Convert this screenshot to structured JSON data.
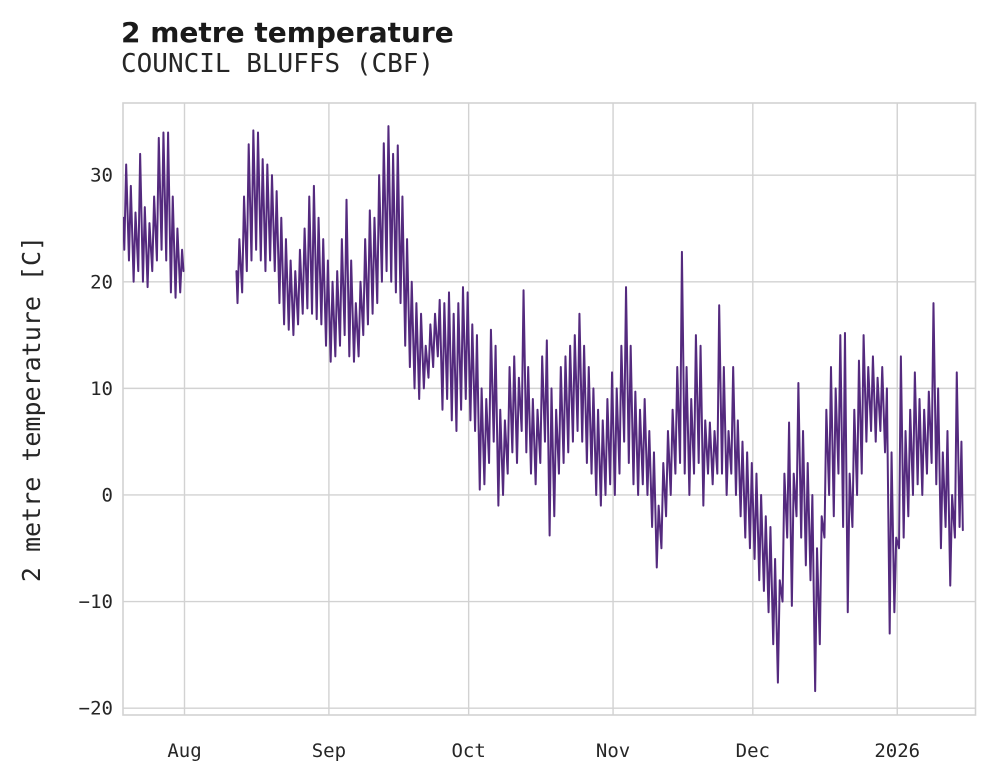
{
  "header": {
    "title": "2 metre temperature",
    "subtitle": "COUNCIL BLUFFS (CBF)"
  },
  "chart_data": {
    "type": "line",
    "title": "2 metre temperature",
    "subtitle": "COUNCIL BLUFFS (CBF)",
    "xlabel": "",
    "ylabel": "2 metre temperature [C]",
    "y_ticks": [
      30,
      20,
      10,
      0,
      -10,
      -20
    ],
    "x_tick_labels": [
      "Aug",
      "Sep",
      "Oct",
      "Nov",
      "Dec",
      "2026"
    ],
    "x_tick_days": [
      13.2,
      44.2,
      74.2,
      105.2,
      135.2,
      166.2
    ],
    "x_range_days": [
      0,
      183.0
    ],
    "ylim": [
      -20.64,
      36.77
    ],
    "grid": true,
    "legend": "none",
    "line_color": "#542a7e",
    "grid_color": "#d2d2d2",
    "text_color": "#262626",
    "resolution": "daily min/max envelope of sub-daily series; gap between segments = missing data in early August",
    "segments": [
      {
        "start_day": 0,
        "start": 26,
        "end": 21,
        "min": [
          23,
          22,
          20,
          21,
          20,
          19.5,
          21,
          22,
          23,
          22,
          19,
          18.5,
          19
        ],
        "max": [
          31,
          29,
          26.5,
          32,
          27,
          25.5,
          28,
          33.5,
          34,
          34,
          28,
          25,
          23
        ]
      },
      {
        "start_day": 24.3,
        "start": 21,
        "end": -3.3,
        "min": [
          18,
          19,
          21,
          22,
          23,
          22,
          21,
          22,
          21,
          18,
          16,
          15.5,
          15,
          16,
          17,
          17.5,
          17,
          16.5,
          16,
          14,
          12.5,
          13,
          14,
          15,
          13,
          12.5,
          13,
          15,
          16,
          17,
          18,
          20,
          21,
          20,
          19,
          18,
          14,
          12,
          10,
          9,
          10,
          11,
          12,
          13,
          8,
          9,
          7,
          6,
          8,
          9,
          7,
          6,
          0.5,
          1,
          3,
          5,
          -1,
          0,
          2,
          4,
          3,
          6,
          4,
          2,
          1,
          3,
          5,
          -3.8,
          -2,
          2,
          3,
          4,
          5,
          6,
          5,
          3,
          2,
          0,
          -1,
          0,
          1,
          0,
          2,
          5,
          3,
          1,
          0,
          1,
          0,
          -3,
          -6.8,
          -5,
          -2,
          0,
          2,
          3,
          2,
          0,
          2,
          3,
          -1,
          2,
          1,
          2,
          2,
          0,
          2,
          0,
          -2,
          -4,
          -5,
          -6,
          -8,
          -9,
          -11,
          -14,
          -17.6,
          -10,
          -4,
          -10.4,
          -2,
          -4,
          -6.6,
          -8,
          -18.4,
          -14,
          -4,
          0,
          -2,
          2,
          -3,
          -11,
          -3,
          0,
          2,
          5,
          6,
          5,
          6,
          4,
          -13,
          -11,
          -5,
          -4,
          -2,
          0,
          1,
          0,
          2,
          3,
          1,
          -5,
          -3,
          -8.5,
          -4,
          -3
        ],
        "max": [
          24,
          28,
          32.9,
          34.2,
          34,
          31.5,
          31,
          30,
          28.5,
          26,
          24,
          22,
          21,
          23,
          25,
          28,
          29,
          26,
          24,
          22,
          20,
          21,
          24,
          27.7,
          22,
          18,
          20,
          24,
          26.7,
          26,
          30,
          33,
          34.6,
          32,
          32.8,
          28,
          24,
          20,
          18,
          17,
          14,
          16,
          17,
          18.3,
          18,
          19,
          17,
          18,
          19.5,
          19,
          16,
          15,
          10,
          9,
          15.5,
          14,
          8,
          7,
          12,
          13,
          11,
          19.2,
          12,
          9,
          8,
          13,
          14.5,
          10,
          8,
          12,
          13,
          14,
          15,
          17,
          14,
          12,
          10,
          8,
          7,
          9,
          11.5,
          10,
          14,
          19.5,
          14,
          9.7,
          8,
          9,
          6,
          4,
          -1,
          3,
          6,
          8,
          12,
          22.8,
          12,
          9,
          15,
          14,
          7,
          6.8,
          6,
          17.8,
          12,
          6,
          12,
          7,
          5,
          4,
          3,
          2,
          0,
          -2,
          -3,
          -6,
          -8,
          2,
          6.8,
          2,
          10.5,
          6,
          3,
          0,
          -5,
          -2,
          8,
          12,
          10,
          15,
          15.2,
          2,
          8,
          12.6,
          15,
          12,
          13,
          11,
          12,
          10,
          4,
          -4,
          13,
          6,
          8,
          11.5,
          9,
          8,
          9.7,
          18,
          10,
          4,
          6,
          0,
          11.5,
          5
        ]
      }
    ]
  }
}
